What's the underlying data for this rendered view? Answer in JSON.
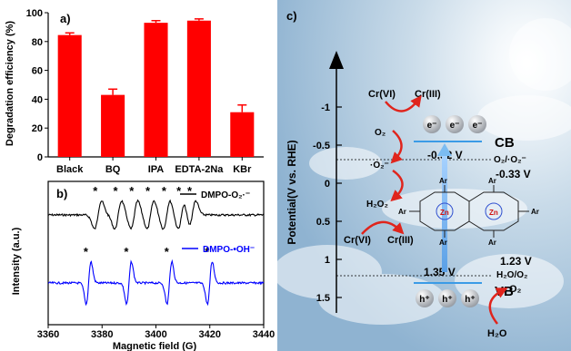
{
  "panel_a": {
    "label": "a)"
  },
  "panel_b": {
    "label": "b)"
  },
  "panel_c": {
    "label": "c)",
    "ylabel": "Potential(V vs. RHE)",
    "yticks": [
      "-1",
      "-0.5",
      "0",
      "0.5",
      "1",
      "1.5"
    ],
    "cb_label": "CB",
    "vb_label": "VB",
    "cb_potential": "-0.52 V",
    "vb_potential": "1.35 V",
    "o2_label": "O₂/·O₂⁻",
    "o2_potential": "-0.33 V",
    "h2o_label": "H₂O/O₂",
    "h2o_potential": "1.23 V",
    "cr6_top": "Cr(VI)",
    "cr3_top": "Cr(III)",
    "cr6_mid": "Cr(VI)",
    "cr3_mid": "Cr(III)",
    "electron": "e⁻",
    "hole": "h⁺",
    "o2_species": "O₂",
    "superoxide": "·O₂⁻",
    "h2o2": "H₂O₂",
    "o2_product": "O₂",
    "h2o": "H₂O",
    "ar": "Ar",
    "zn": "Zn"
  },
  "chart_data": [
    {
      "type": "bar",
      "title": "",
      "xlabel": "",
      "ylabel": "Degradation efficiency (%)",
      "ylim": [
        0,
        100
      ],
      "yticks": [
        0,
        20,
        40,
        60,
        80,
        100
      ],
      "categories": [
        "Black",
        "BQ",
        "IPA",
        "EDTA-2Na",
        "KBr"
      ],
      "values": [
        84.5,
        43,
        93,
        94.5,
        31
      ],
      "errors": [
        1.5,
        4,
        1.5,
        1.2,
        5
      ],
      "color": "#ff0000"
    },
    {
      "type": "line",
      "title": "",
      "xlabel": "Magnetic field (G)",
      "ylabel": "Intensity (a.u.)",
      "xlim": [
        3360,
        3440
      ],
      "xticks": [
        3360,
        3380,
        3400,
        3420,
        3440
      ],
      "series": [
        {
          "name": "DMPO-O₂·⁻",
          "color": "#000000",
          "peaks": [
            3378.5,
            3386,
            3392,
            3398,
            3404,
            3409.5,
            3413.5
          ]
        },
        {
          "name": "DMPO-•OH⁻",
          "color": "#0000ff",
          "peaks": [
            3375,
            3390,
            3405,
            3420
          ]
        }
      ],
      "legend_position": "right"
    }
  ]
}
